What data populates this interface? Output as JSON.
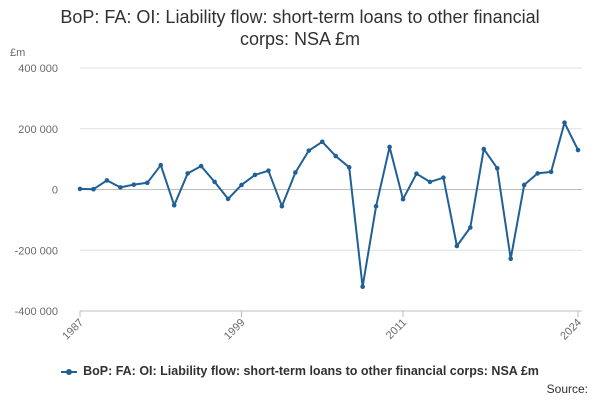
{
  "chart_data": {
    "type": "line",
    "title": "BoP: FA: OI: Liability flow: short-term loans to other financial corps: NSA £m",
    "ylabel": "£m",
    "xlabel": "",
    "ylim": [
      -400000,
      400000
    ],
    "yticks": [
      -400000,
      -200000,
      0,
      200000,
      400000
    ],
    "ytick_labels": [
      "-400 000",
      "-200 000",
      "0",
      "200 000",
      "400 000"
    ],
    "xticks": [
      1987,
      1999,
      2011,
      2024
    ],
    "xtick_labels": [
      "1987",
      "1999",
      "2011",
      "2024"
    ],
    "xlim": [
      1987,
      2024
    ],
    "grid": true,
    "legend_position": "bottom",
    "series": [
      {
        "name": "BoP: FA: OI: Liability flow: short-term loans to other financial corps: NSA £m",
        "color": "#206095",
        "x": [
          1987,
          1988,
          1989,
          1990,
          1991,
          1992,
          1993,
          1994,
          1995,
          1996,
          1997,
          1998,
          1999,
          2000,
          2001,
          2002,
          2003,
          2004,
          2005,
          2006,
          2007,
          2008,
          2009,
          2010,
          2011,
          2012,
          2013,
          2014,
          2015,
          2016,
          2017,
          2018,
          2019,
          2020,
          2021,
          2022,
          2023,
          2024
        ],
        "values": [
          2000,
          1000,
          30000,
          7000,
          16000,
          22000,
          80000,
          -52000,
          53000,
          77000,
          25000,
          -31000,
          15000,
          48000,
          62000,
          -55000,
          56000,
          128000,
          157000,
          110000,
          73000,
          -320000,
          -55000,
          140000,
          -32000,
          52000,
          25000,
          39000,
          -186000,
          -125000,
          133000,
          70000,
          -228000,
          15000,
          53000,
          58000,
          220000,
          130000
        ]
      }
    ]
  },
  "legend": {
    "label": "BoP: FA: OI: Liability flow: short-term loans to other financial corps: NSA £m"
  },
  "source_label": "Source:"
}
